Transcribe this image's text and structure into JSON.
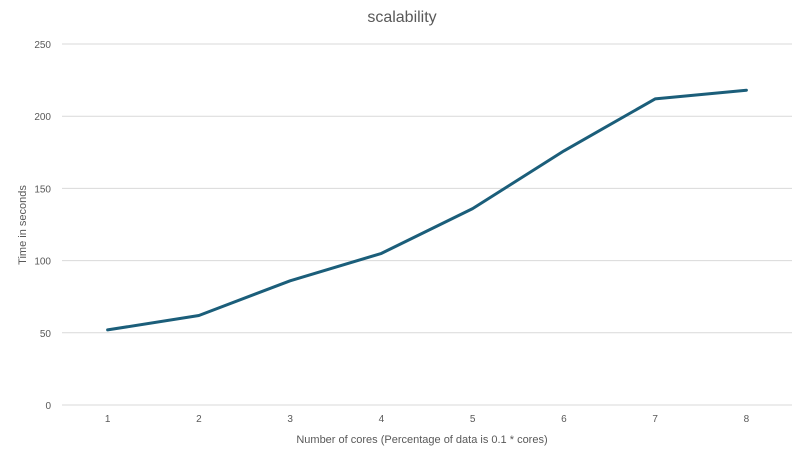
{
  "chart_data": {
    "type": "line",
    "title": "scalability",
    "xlabel": "Number of cores (Percentage of data is 0.1 * cores)",
    "ylabel": "Time in seconds",
    "categories": [
      "1",
      "2",
      "3",
      "4",
      "5",
      "6",
      "7",
      "8"
    ],
    "series": [
      {
        "values": [
          52,
          62,
          86,
          105,
          136,
          176,
          212,
          218
        ]
      }
    ],
    "ylim": [
      0,
      250
    ],
    "yticks": [
      0,
      50,
      100,
      150,
      200,
      250
    ],
    "grid": true,
    "legend": "none",
    "colors": {
      "line": "#1b5e7a",
      "grid": "#d9d9d9",
      "text": "#595959"
    }
  }
}
